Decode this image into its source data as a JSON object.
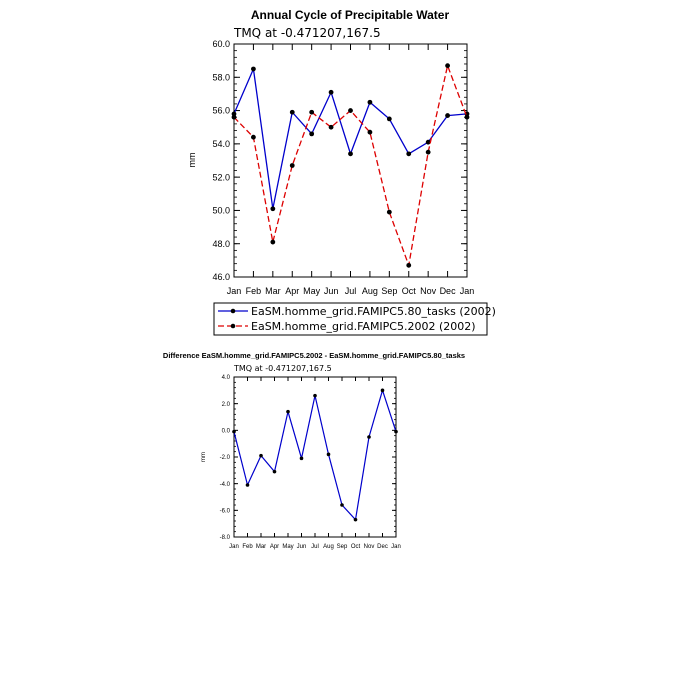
{
  "chart_data": [
    {
      "type": "line",
      "title": "Annual Cycle of Precipitable Water",
      "subtitle": "TMQ at -0.471207,167.5",
      "ylabel": "mm",
      "ylim": [
        46.0,
        60.0
      ],
      "yticks": [
        "60.0",
        "58.0",
        "56.0",
        "54.0",
        "52.0",
        "50.0",
        "48.0",
        "46.0"
      ],
      "categories": [
        "Jan",
        "Feb",
        "Mar",
        "Apr",
        "May",
        "Jun",
        "Jul",
        "Aug",
        "Sep",
        "Oct",
        "Nov",
        "Dec",
        "Jan"
      ],
      "series": [
        {
          "name": "EaSM.homme_grid.FAMIPC5.80_tasks (2002)",
          "color": "#0000cc",
          "dash": "solid",
          "values": [
            55.8,
            58.5,
            50.1,
            55.9,
            54.6,
            57.1,
            53.4,
            56.5,
            55.5,
            53.4,
            54.1,
            55.7,
            55.8
          ]
        },
        {
          "name": "EaSM.homme_grid.FAMIPC5.2002 (2002)",
          "color": "#dd0000",
          "dash": "dashed",
          "values": [
            55.6,
            54.4,
            48.1,
            52.7,
            55.9,
            55.0,
            56.0,
            54.7,
            49.9,
            46.7,
            53.5,
            58.7,
            55.6
          ]
        }
      ],
      "legend_position": "bottom"
    },
    {
      "type": "line",
      "title": "Difference EaSM.homme_grid.FAMIPC5.2002 - EaSM.homme_grid.FAMIPC5.80_tasks",
      "subtitle": "TMQ at -0.471207,167.5",
      "ylabel": "mm",
      "ylim": [
        -8.0,
        4.0
      ],
      "yticks": [
        "4.0",
        "2.0",
        "0.0",
        "-2.0",
        "-4.0",
        "-6.0",
        "-8.0"
      ],
      "categories": [
        "Jan",
        "Feb",
        "Mar",
        "Apr",
        "May",
        "Jun",
        "Jul",
        "Aug",
        "Sep",
        "Oct",
        "Nov",
        "Dec",
        "Jan"
      ],
      "series": [
        {
          "color": "#0000cc",
          "dash": "solid",
          "values": [
            -0.1,
            -4.1,
            -1.9,
            -3.1,
            1.4,
            -2.1,
            2.6,
            -1.8,
            -5.6,
            -6.7,
            -0.5,
            3.0,
            -0.1
          ]
        }
      ]
    }
  ]
}
